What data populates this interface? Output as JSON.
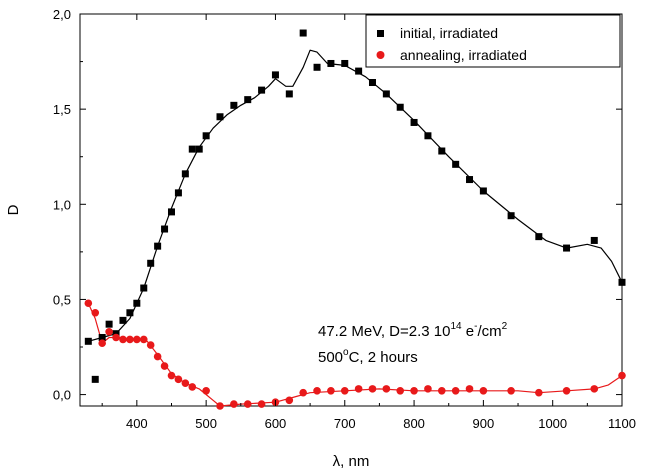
{
  "chart_data": {
    "type": "scatter",
    "xlabel": "λ, nm",
    "ylabel": "D",
    "xlim": [
      318,
      1100
    ],
    "ylim": [
      -0.06,
      2.0
    ],
    "x_ticks": [
      400,
      500,
      600,
      700,
      800,
      900,
      1000,
      1100
    ],
    "y_ticks": [
      0.0,
      0.5,
      1.0,
      1.5,
      2.0
    ],
    "y_tick_labels": [
      "0,0",
      "0,5",
      "1,0",
      "1,5",
      "2,0"
    ],
    "legend_position": "top-right",
    "annotation": {
      "line1": {
        "prefix": "47.2 MeV, D=2.3 10",
        "sup1": "14",
        "mid": " e",
        "sup2": "-",
        "suffix": "/cm",
        "sup3": "2"
      },
      "line2": {
        "prefix": "500",
        "sup": "o",
        "suffix": "C, 2 hours"
      }
    },
    "series": [
      {
        "name": "initial, irradiated",
        "marker": "square",
        "color": "#000000",
        "points": [
          [
            330,
            0.28
          ],
          [
            340,
            0.08
          ],
          [
            350,
            0.3
          ],
          [
            360,
            0.37
          ],
          [
            370,
            0.32
          ],
          [
            380,
            0.39
          ],
          [
            390,
            0.43
          ],
          [
            400,
            0.48
          ],
          [
            410,
            0.56
          ],
          [
            420,
            0.69
          ],
          [
            430,
            0.78
          ],
          [
            440,
            0.87
          ],
          [
            450,
            0.96
          ],
          [
            460,
            1.06
          ],
          [
            470,
            1.16
          ],
          [
            480,
            1.29
          ],
          [
            490,
            1.29
          ],
          [
            500,
            1.36
          ],
          [
            520,
            1.46
          ],
          [
            540,
            1.52
          ],
          [
            560,
            1.55
          ],
          [
            580,
            1.6
          ],
          [
            600,
            1.68
          ],
          [
            620,
            1.58
          ],
          [
            640,
            1.9
          ],
          [
            660,
            1.72
          ],
          [
            680,
            1.74
          ],
          [
            700,
            1.74
          ],
          [
            720,
            1.7
          ],
          [
            740,
            1.64
          ],
          [
            760,
            1.58
          ],
          [
            780,
            1.51
          ],
          [
            800,
            1.43
          ],
          [
            820,
            1.36
          ],
          [
            840,
            1.28
          ],
          [
            860,
            1.21
          ],
          [
            880,
            1.13
          ],
          [
            900,
            1.07
          ],
          [
            940,
            0.94
          ],
          [
            980,
            0.83
          ],
          [
            1020,
            0.77
          ],
          [
            1060,
            0.81
          ],
          [
            1100,
            0.59
          ]
        ],
        "fit": [
          [
            330,
            0.28
          ],
          [
            350,
            0.3
          ],
          [
            370,
            0.32
          ],
          [
            390,
            0.4
          ],
          [
            410,
            0.56
          ],
          [
            430,
            0.78
          ],
          [
            450,
            0.98
          ],
          [
            470,
            1.16
          ],
          [
            490,
            1.3
          ],
          [
            510,
            1.4
          ],
          [
            530,
            1.47
          ],
          [
            550,
            1.52
          ],
          [
            570,
            1.56
          ],
          [
            590,
            1.62
          ],
          [
            600,
            1.66
          ],
          [
            615,
            1.62
          ],
          [
            625,
            1.62
          ],
          [
            640,
            1.72
          ],
          [
            650,
            1.81
          ],
          [
            660,
            1.8
          ],
          [
            675,
            1.74
          ],
          [
            700,
            1.73
          ],
          [
            730,
            1.67
          ],
          [
            760,
            1.58
          ],
          [
            800,
            1.44
          ],
          [
            850,
            1.25
          ],
          [
            900,
            1.07
          ],
          [
            950,
            0.92
          ],
          [
            990,
            0.81
          ],
          [
            1020,
            0.77
          ],
          [
            1050,
            0.79
          ],
          [
            1070,
            0.77
          ],
          [
            1085,
            0.7
          ],
          [
            1100,
            0.59
          ]
        ]
      },
      {
        "name": "annealing, irradiated",
        "marker": "circle",
        "color": "#e8191a",
        "points": [
          [
            330,
            0.48
          ],
          [
            340,
            0.43
          ],
          [
            350,
            0.27
          ],
          [
            360,
            0.33
          ],
          [
            370,
            0.3
          ],
          [
            380,
            0.29
          ],
          [
            390,
            0.29
          ],
          [
            400,
            0.29
          ],
          [
            410,
            0.29
          ],
          [
            420,
            0.26
          ],
          [
            430,
            0.2
          ],
          [
            440,
            0.15
          ],
          [
            450,
            0.1
          ],
          [
            460,
            0.08
          ],
          [
            470,
            0.06
          ],
          [
            480,
            0.04
          ],
          [
            500,
            0.02
          ],
          [
            520,
            -0.06
          ],
          [
            540,
            -0.05
          ],
          [
            560,
            -0.05
          ],
          [
            580,
            -0.05
          ],
          [
            600,
            -0.04
          ],
          [
            620,
            -0.03
          ],
          [
            640,
            0.01
          ],
          [
            660,
            0.02
          ],
          [
            680,
            0.02
          ],
          [
            700,
            0.02
          ],
          [
            720,
            0.03
          ],
          [
            740,
            0.03
          ],
          [
            760,
            0.03
          ],
          [
            780,
            0.02
          ],
          [
            800,
            0.02
          ],
          [
            820,
            0.03
          ],
          [
            840,
            0.02
          ],
          [
            860,
            0.02
          ],
          [
            880,
            0.03
          ],
          [
            900,
            0.02
          ],
          [
            940,
            0.02
          ],
          [
            980,
            0.01
          ],
          [
            1020,
            0.02
          ],
          [
            1060,
            0.03
          ],
          [
            1100,
            0.1
          ]
        ],
        "fit": [
          [
            330,
            0.48
          ],
          [
            340,
            0.4
          ],
          [
            350,
            0.27
          ],
          [
            360,
            0.3
          ],
          [
            375,
            0.3
          ],
          [
            400,
            0.29
          ],
          [
            415,
            0.28
          ],
          [
            430,
            0.21
          ],
          [
            450,
            0.11
          ],
          [
            470,
            0.06
          ],
          [
            490,
            0.03
          ],
          [
            510,
            -0.03
          ],
          [
            520,
            -0.06
          ],
          [
            550,
            -0.05
          ],
          [
            600,
            -0.04
          ],
          [
            630,
            -0.01
          ],
          [
            650,
            0.01
          ],
          [
            700,
            0.02
          ],
          [
            750,
            0.03
          ],
          [
            800,
            0.02
          ],
          [
            850,
            0.02
          ],
          [
            900,
            0.02
          ],
          [
            950,
            0.02
          ],
          [
            980,
            0.01
          ],
          [
            1020,
            0.02
          ],
          [
            1060,
            0.03
          ],
          [
            1080,
            0.05
          ],
          [
            1100,
            0.1
          ]
        ]
      }
    ]
  }
}
